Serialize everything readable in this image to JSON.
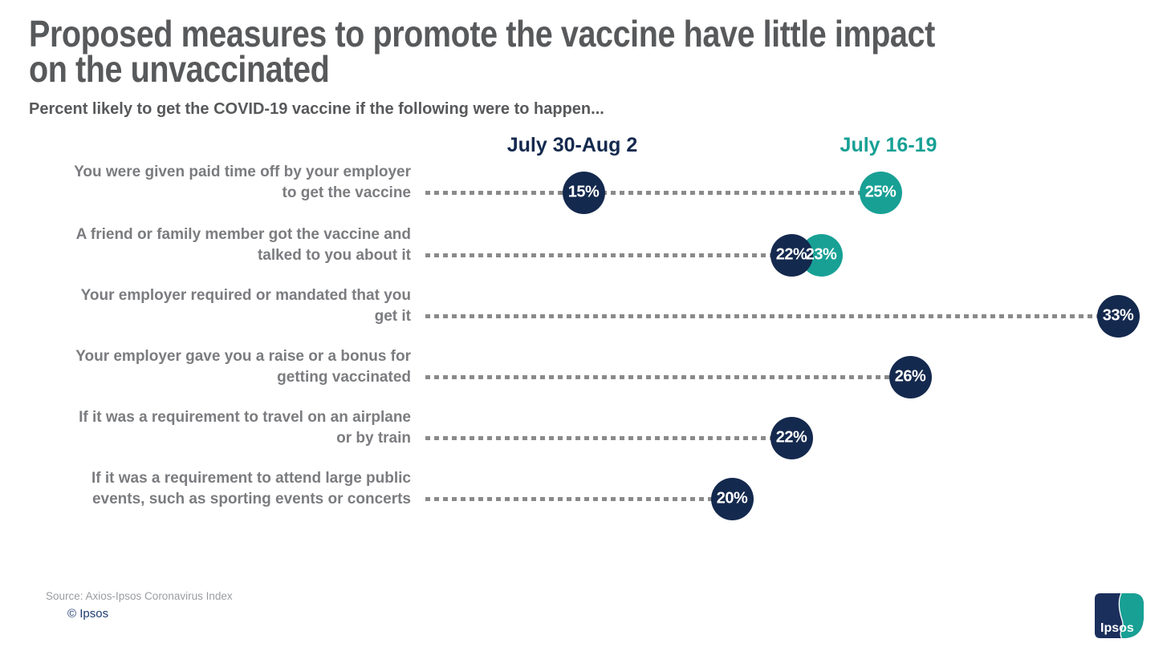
{
  "title_lines": [
    "Proposed measures to promote the vaccine have little impact",
    "on the unvaccinated"
  ],
  "subtitle": "Percent likely to get the COVID-19 vaccine if the following were to happen...",
  "colors": {
    "navy": "#14294e",
    "teal": "#18a095",
    "title_gray": "#58595b",
    "label_gray": "#7b7c7f",
    "line_gray": "#8a8a8a",
    "source_gray": "#9b9da1"
  },
  "chart_data": {
    "type": "dot-plot",
    "title": "Proposed measures to promote the vaccine have little impact on the unvaccinated",
    "subtitle": "Percent likely to get the COVID-19 vaccine if the following were to happen...",
    "xlim": [
      0,
      35
    ],
    "grid": false,
    "legend_position": "top",
    "value_suffix": "%",
    "categories": [
      [
        "You were given paid time off by your employer",
        "to get the vaccine"
      ],
      [
        "A friend or family member got the vaccine and",
        "talked to you about it"
      ],
      [
        "Your employer required or mandated that you",
        "get it"
      ],
      [
        "Your employer gave you a raise or a bonus for",
        "getting vaccinated"
      ],
      [
        "If it was a requirement to travel on an airplane",
        "or by train"
      ],
      [
        "If it was a requirement to attend large public",
        "events, such as sporting events or concerts"
      ]
    ],
    "series": [
      {
        "name": "July 30-Aug 2",
        "color_key": "navy",
        "values": [
          15,
          22,
          33,
          26,
          22,
          20
        ]
      },
      {
        "name": "July 16-19",
        "color_key": "teal",
        "values": [
          25,
          23,
          null,
          null,
          null,
          null
        ]
      }
    ]
  },
  "footer": {
    "source": "Source: Axios-Ipsos Coronavirus Index",
    "copyright": "© Ipsos"
  },
  "logo": {
    "label": "Ipsos"
  }
}
